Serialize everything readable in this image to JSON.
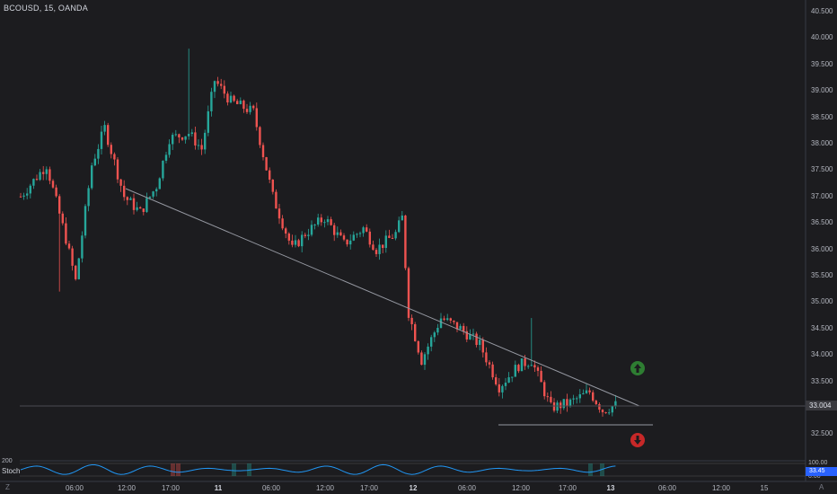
{
  "chart": {
    "title": "BCOUSD, 15, OANDA",
    "last_price": "33.004",
    "price_axis": [
      "40.500",
      "40.000",
      "39.500",
      "39.000",
      "38.500",
      "38.000",
      "37.500",
      "37.000",
      "36.500",
      "36.000",
      "35.500",
      "35.000",
      "34.500",
      "34.000",
      "33.500",
      "33.000",
      "32.500"
    ],
    "time_axis": [
      "06:00",
      "12:00",
      "17:00",
      "11",
      "06:00",
      "12:00",
      "17:00",
      "12",
      "06:00",
      "12:00",
      "17:00",
      "13",
      "06:00",
      "12:00",
      "15"
    ],
    "time_axis_bold": [
      "11",
      "12",
      "13"
    ],
    "colors": {
      "up": "#26a69a",
      "down": "#ef5350",
      "background": "#1c1c1f",
      "trendline": "#9598a1",
      "arrow_up": "#2e7d32",
      "arrow_down": "#c62828",
      "stoch": "#2196f3"
    },
    "icons": {
      "up_arrow": "arrow-up-circle-icon",
      "down_arrow": "arrow-down-circle-icon"
    }
  },
  "oscillator": {
    "name": "Stoch",
    "left_level": "200",
    "right_levels": [
      "100.00",
      "0.00"
    ],
    "value": "33.45"
  },
  "footer": {
    "left": "Z",
    "right": "A"
  },
  "chart_data": {
    "type": "candlestick",
    "title": "BCOUSD, 15, OANDA",
    "ylim": [
      32.3,
      40.6
    ],
    "waypoints": [
      [
        0,
        37.0
      ],
      [
        8,
        37.6
      ],
      [
        14,
        36.2
      ],
      [
        17,
        35.4
      ],
      [
        22,
        37.6
      ],
      [
        26,
        38.3
      ],
      [
        32,
        37.0
      ],
      [
        37,
        36.7
      ],
      [
        42,
        37.2
      ],
      [
        46,
        38.1
      ],
      [
        52,
        38.2
      ],
      [
        56,
        37.9
      ],
      [
        60,
        39.2
      ],
      [
        65,
        38.8
      ],
      [
        72,
        38.6
      ],
      [
        78,
        37.0
      ],
      [
        84,
        36.0
      ],
      [
        88,
        36.3
      ],
      [
        94,
        36.6
      ],
      [
        100,
        36.1
      ],
      [
        106,
        36.4
      ],
      [
        110,
        36.0
      ],
      [
        116,
        36.3
      ],
      [
        118,
        36.6
      ],
      [
        120,
        34.8
      ],
      [
        124,
        33.9
      ],
      [
        130,
        34.7
      ],
      [
        136,
        34.5
      ],
      [
        142,
        34.2
      ],
      [
        148,
        33.4
      ],
      [
        154,
        33.8
      ],
      [
        158,
        33.9
      ],
      [
        164,
        33.0
      ],
      [
        170,
        33.1
      ],
      [
        176,
        33.3
      ],
      [
        180,
        32.95
      ],
      [
        184,
        33.05
      ]
    ],
    "trendline": {
      "from": [
        "17:00 (day 1)",
        37.0
      ],
      "to": [
        "after 13",
        33.0
      ]
    },
    "support_line": 32.65,
    "last": 33.004,
    "stoch_last": 33.45
  }
}
